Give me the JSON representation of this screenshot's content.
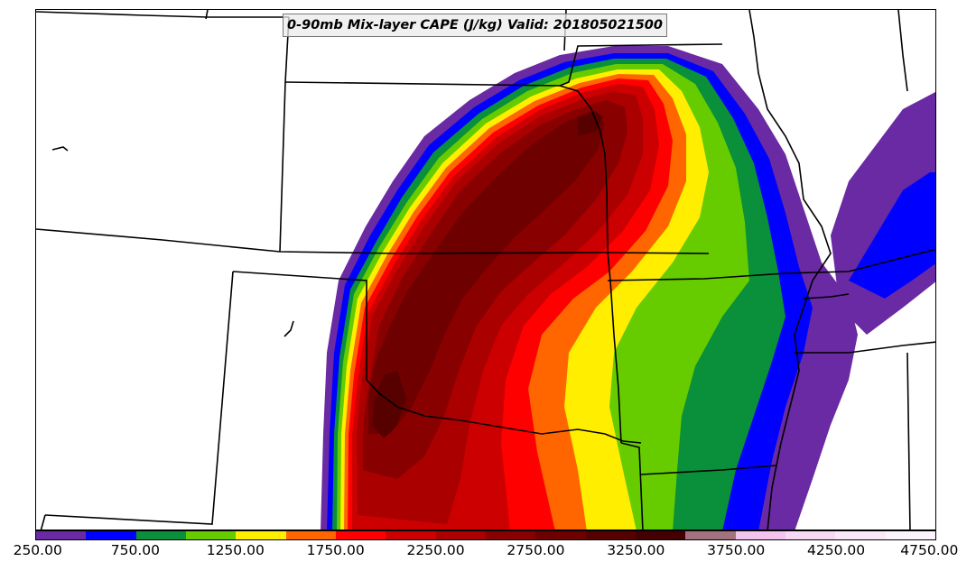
{
  "title": "0-90mb Mix-layer CAPE (J/kg) Valid: 201805021500",
  "field": {
    "name": "0-90mb Mix-layer CAPE",
    "units": "J/kg",
    "valid": "201805021500"
  },
  "colorbar": {
    "levels": [
      250,
      500,
      750,
      1000,
      1250,
      1500,
      1750,
      2000,
      2250,
      2500,
      2750,
      3000,
      3250,
      3500,
      3750,
      4000,
      4250,
      4500,
      4750
    ],
    "colors": [
      "#6a2aa3",
      "#0000ff",
      "#0a8f3a",
      "#66cc00",
      "#ffee00",
      "#ff6600",
      "#ff0000",
      "#cc0000",
      "#aa0000",
      "#880000",
      "#6e0000",
      "#560000",
      "#440000",
      "#a3727f",
      "#f2c4ee",
      "#f7d8f5",
      "#fae8f8",
      "#fdf3fc"
    ],
    "tick_labels": [
      "250.00",
      "750.00",
      "1250.00",
      "1750.00",
      "2250.00",
      "2750.00",
      "3250.00",
      "3750.00",
      "4250.00",
      "4750.00"
    ]
  },
  "map": {
    "region": "Central United States",
    "boundaries": "state borders",
    "background": "#ffffff"
  }
}
